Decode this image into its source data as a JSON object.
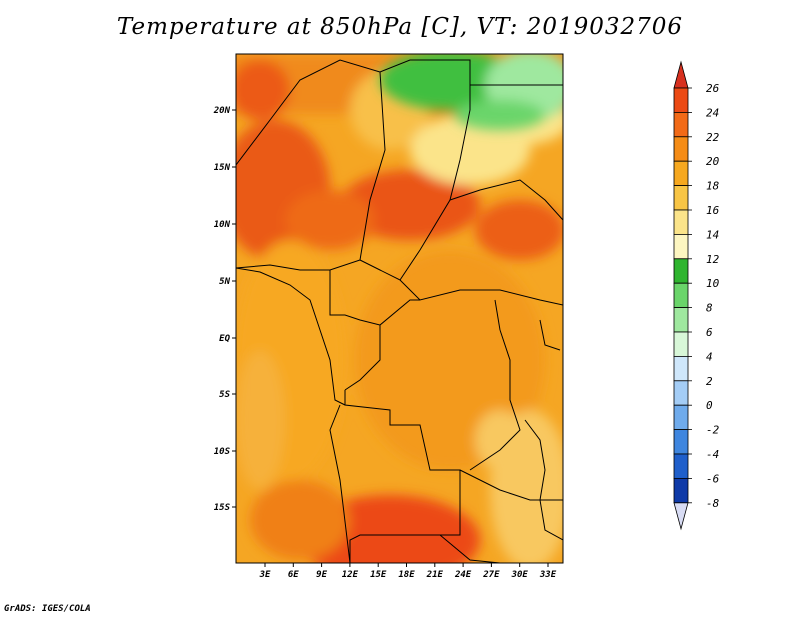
{
  "title": "Temperature at 850hPa [C], VT: 2019032706",
  "credit": "GrADS: IGES/COLA",
  "map": {
    "variable": "Temperature",
    "level": "850hPa",
    "units": "C",
    "valid_time": "2019032706",
    "lat_ticks": [
      "20N",
      "15N",
      "10N",
      "5N",
      "EQ",
      "5S",
      "10S",
      "15S"
    ],
    "lon_ticks": [
      "3E",
      "6E",
      "9E",
      "12E",
      "15E",
      "18E",
      "21E",
      "24E",
      "27E",
      "30E",
      "33E"
    ]
  },
  "colorbar": {
    "labels": [
      "26",
      "24",
      "22",
      "20",
      "18",
      "16",
      "14",
      "12",
      "10",
      "8",
      "6",
      "4",
      "2",
      "0",
      "-2",
      "-4",
      "-6",
      "-8"
    ],
    "colors": [
      "#d7301f",
      "#ec4a14",
      "#f26a17",
      "#f58c16",
      "#f6a81f",
      "#f8c545",
      "#fbe48a",
      "#fdf6c1",
      "#2fb52f",
      "#6ad56a",
      "#9fe89f",
      "#d8f7d8",
      "#cfe7fb",
      "#a4cdf6",
      "#6fabec",
      "#3f86df",
      "#1f5fcb",
      "#0f3aa8",
      "#081f7a",
      "#0a0a55",
      "#d8dcf4"
    ]
  }
}
